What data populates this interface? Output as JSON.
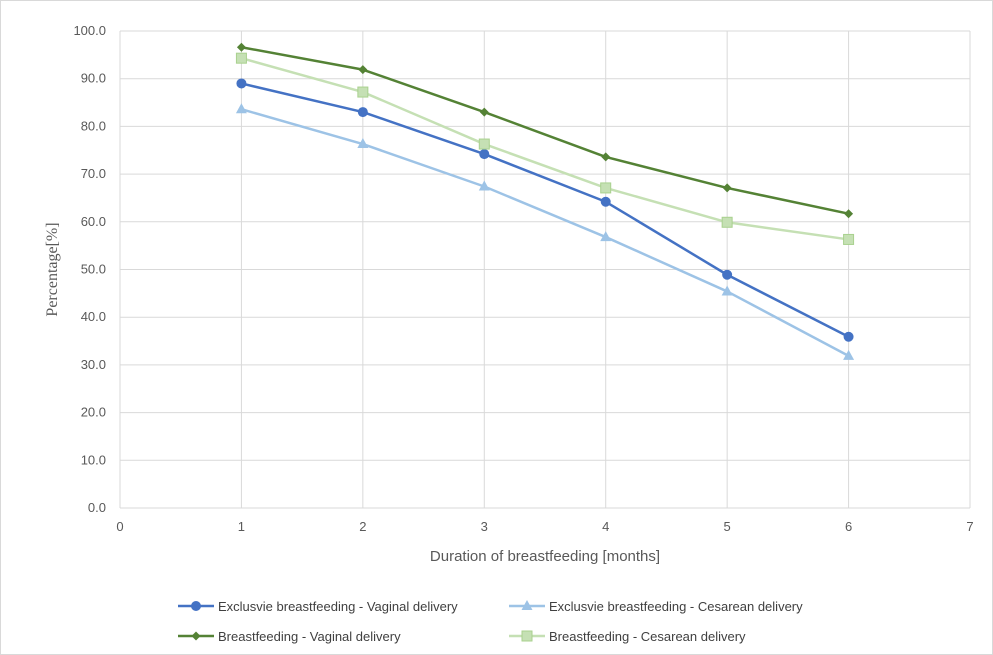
{
  "chart_data": {
    "type": "line",
    "title": "",
    "xlabel": "Duration of breastfeeding [months]",
    "ylabel": "Percentage[%]",
    "xlim": [
      0,
      7
    ],
    "ylim": [
      0,
      100
    ],
    "x_ticks": [
      "0",
      "1",
      "2",
      "3",
      "4",
      "5",
      "6",
      "7"
    ],
    "y_ticks": [
      "0.0",
      "10.0",
      "20.0",
      "30.0",
      "40.0",
      "50.0",
      "60.0",
      "70.0",
      "80.0",
      "90.0",
      "100.0"
    ],
    "grid": true,
    "legend_position": "bottom",
    "x": [
      1,
      2,
      3,
      4,
      5,
      6
    ],
    "series": [
      {
        "name": "Exclusvie breastfeeding - Vaginal delivery",
        "values": [
          89.0,
          83.0,
          74.2,
          64.2,
          48.9,
          35.9
        ],
        "color": "#4472c4",
        "marker": "circle"
      },
      {
        "name": "Exclusvie breastfeeding - Cesarean delivery",
        "values": [
          83.6,
          76.3,
          67.4,
          56.8,
          45.4,
          31.9
        ],
        "color": "#9dc3e6",
        "marker": "triangle"
      },
      {
        "name": "Breastfeeding - Vaginal delivery",
        "values": [
          96.6,
          91.9,
          83.0,
          73.6,
          67.1,
          61.7
        ],
        "color": "#548235",
        "marker": "diamond"
      },
      {
        "name": "Breastfeeding - Cesarean delivery",
        "values": [
          94.3,
          87.2,
          76.3,
          67.1,
          59.9,
          56.3
        ],
        "color": "#c5e0b4",
        "marker": "square"
      }
    ]
  }
}
